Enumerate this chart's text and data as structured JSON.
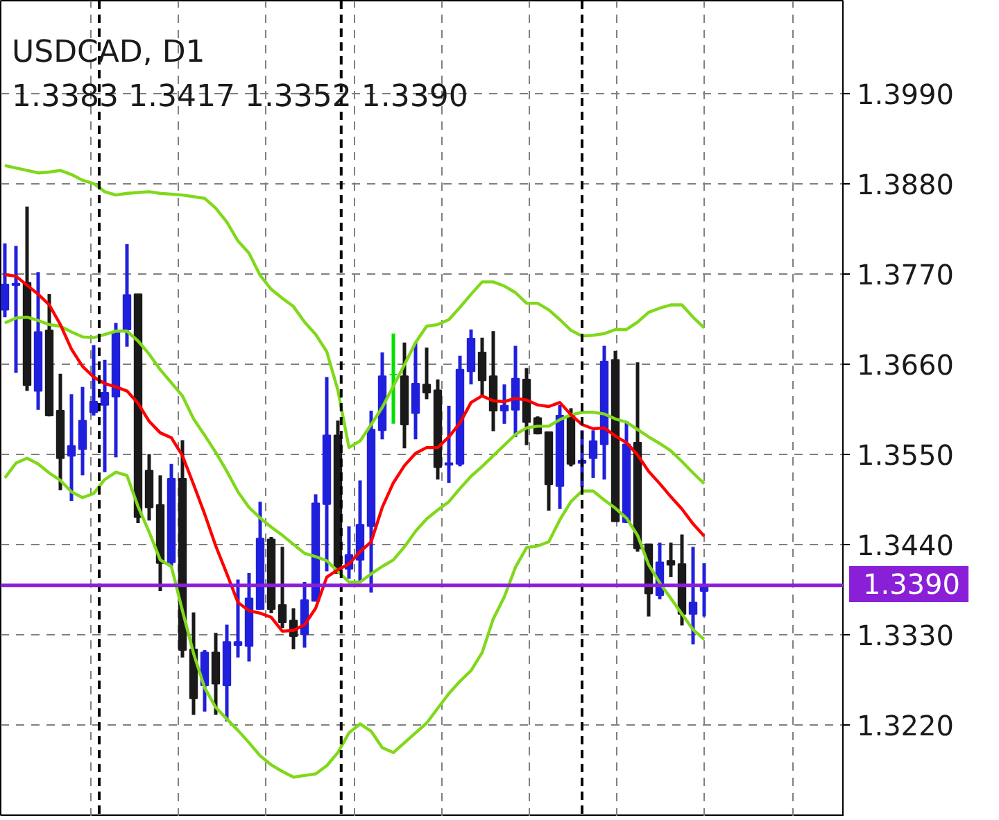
{
  "chart_data": {
    "type": "candlestick",
    "title": "USDCAD, D1",
    "subtitle": "1.3383 1.3417 1.3352 1.3390",
    "categories": [
      null,
      null,
      null,
      null,
      null,
      null,
      null,
      null,
      null,
      null,
      null,
      null,
      null,
      null,
      null,
      null,
      null,
      null,
      null,
      null,
      null,
      null,
      null,
      null,
      null,
      null,
      null,
      null,
      null,
      null,
      null,
      null,
      null,
      null,
      null,
      null,
      null,
      null,
      null,
      null,
      null,
      null,
      null,
      null,
      null,
      null,
      null,
      null,
      null,
      null,
      null,
      null,
      null,
      null,
      null,
      null,
      null,
      null,
      null,
      null,
      null,
      null,
      null,
      null
    ],
    "ohlc": [
      [
        1.3726,
        1.3807,
        1.3717,
        1.3757
      ],
      [
        1.3756,
        1.3804,
        1.3649,
        1.3758
      ],
      [
        1.3759,
        1.3852,
        1.3627,
        1.3634
      ],
      [
        1.3627,
        1.3772,
        1.3604,
        1.3699
      ],
      [
        1.3701,
        1.3745,
        1.3596,
        1.3597
      ],
      [
        1.3603,
        1.3648,
        1.3506,
        1.3545
      ],
      [
        1.3548,
        1.3623,
        1.3493,
        1.356
      ],
      [
        1.3556,
        1.3632,
        1.3524,
        1.3591
      ],
      [
        1.3601,
        1.3683,
        1.3597,
        1.3614
      ],
      [
        1.361,
        1.3665,
        1.3528,
        1.3625
      ],
      [
        1.362,
        1.371,
        1.3546,
        1.3699
      ],
      [
        1.3702,
        1.3806,
        1.3681,
        1.3744
      ],
      [
        1.3745,
        1.3745,
        1.3466,
        1.3473
      ],
      [
        1.353,
        1.355,
        1.3469,
        1.3485
      ],
      [
        1.3488,
        1.3524,
        1.3383,
        1.3417
      ],
      [
        1.3418,
        1.3538,
        1.3413,
        1.352
      ],
      [
        1.352,
        1.3567,
        1.3302,
        1.3311
      ],
      [
        1.3312,
        1.3357,
        1.3232,
        1.3252
      ],
      [
        1.3268,
        1.3311,
        1.3236,
        1.3308
      ],
      [
        1.3308,
        1.3332,
        1.3232,
        1.327
      ],
      [
        1.3268,
        1.3342,
        1.3224,
        1.3321
      ],
      [
        1.3317,
        1.3397,
        1.3302,
        1.3321
      ],
      [
        1.3316,
        1.3405,
        1.3297,
        1.3374
      ],
      [
        1.3361,
        1.3492,
        1.3361,
        1.3447
      ],
      [
        1.3446,
        1.3449,
        1.3356,
        1.3361
      ],
      [
        1.3366,
        1.3437,
        1.3338,
        1.3345
      ],
      [
        1.3347,
        1.3362,
        1.3312,
        1.3328
      ],
      [
        1.333,
        1.3394,
        1.3314,
        1.3372
      ],
      [
        1.3371,
        1.3501,
        1.3371,
        1.349
      ],
      [
        1.3489,
        1.3644,
        1.3407,
        1.3573
      ],
      [
        1.3573,
        1.3591,
        1.3405,
        1.3405
      ],
      [
        1.341,
        1.3462,
        1.3398,
        1.3427
      ],
      [
        1.3421,
        1.3518,
        1.3394,
        1.3464
      ],
      [
        1.3462,
        1.3603,
        1.3381,
        1.358
      ],
      [
        1.3579,
        1.3674,
        1.3568,
        1.3645
      ],
      [
        1.3647,
        1.3697,
        1.3587,
        1.3647
      ],
      [
        1.3645,
        1.3686,
        1.3557,
        1.3586
      ],
      [
        1.36,
        1.3686,
        1.3568,
        1.3636
      ],
      [
        1.3635,
        1.368,
        1.3617,
        1.3625
      ],
      [
        1.3628,
        1.3641,
        1.3519,
        1.3534
      ],
      [
        1.3537,
        1.3609,
        1.3515,
        1.3539
      ],
      [
        1.3538,
        1.367,
        1.3535,
        1.3653
      ],
      [
        1.3651,
        1.3702,
        1.3635,
        1.3691
      ],
      [
        1.3674,
        1.3692,
        1.3621,
        1.364
      ],
      [
        1.3645,
        1.37,
        1.3578,
        1.3603
      ],
      [
        1.3603,
        1.3635,
        1.3587,
        1.3609
      ],
      [
        1.3604,
        1.3682,
        1.3571,
        1.3642
      ],
      [
        1.3641,
        1.3655,
        1.3561,
        1.3589
      ],
      [
        1.3594,
        1.3596,
        1.3574,
        1.3575
      ],
      [
        1.3577,
        1.3577,
        1.3481,
        1.3513
      ],
      [
        1.3511,
        1.361,
        1.3483,
        1.3597
      ],
      [
        1.3597,
        1.3606,
        1.3535,
        1.3538
      ],
      [
        1.3539,
        1.3579,
        1.351,
        1.3542
      ],
      [
        1.3545,
        1.3579,
        1.3521,
        1.3566
      ],
      [
        1.3562,
        1.3682,
        1.3519,
        1.3663
      ],
      [
        1.3665,
        1.3676,
        1.3468,
        1.3468
      ],
      [
        1.3467,
        1.359,
        1.3466,
        1.3562
      ],
      [
        1.3564,
        1.3662,
        1.3431,
        1.3435
      ],
      [
        1.344,
        1.344,
        1.3352,
        1.338
      ],
      [
        1.3378,
        1.3442,
        1.3373,
        1.3418
      ],
      [
        1.342,
        1.3442,
        1.34,
        1.3415
      ],
      [
        1.3416,
        1.3452,
        1.3341,
        1.3355
      ],
      [
        1.3355,
        1.3437,
        1.3318,
        1.3369
      ],
      [
        1.3383,
        1.3417,
        1.3352,
        1.339
      ]
    ],
    "colors": [
      "#2020dc",
      "#2020dc",
      "#1a1a1a",
      "#2020dc",
      "#1a1a1a",
      "#1a1a1a",
      "#2020dc",
      "#2020dc",
      "#2020dc",
      "#2020dc",
      "#2020dc",
      "#2020dc",
      "#1a1a1a",
      "#1a1a1a",
      "#1a1a1a",
      "#2020dc",
      "#1a1a1a",
      "#1a1a1a",
      "#2020dc",
      "#1a1a1a",
      "#2020dc",
      "#2020dc",
      "#2020dc",
      "#2020dc",
      "#1a1a1a",
      "#1a1a1a",
      "#1a1a1a",
      "#2020dc",
      "#2020dc",
      "#2020dc",
      "#1a1a1a",
      "#2020dc",
      "#2020dc",
      "#2020dc",
      "#2020dc",
      "#00e000",
      "#1a1a1a",
      "#2020dc",
      "#1a1a1a",
      "#1a1a1a",
      "#2020dc",
      "#2020dc",
      "#2020dc",
      "#1a1a1a",
      "#1a1a1a",
      "#2020dc",
      "#2020dc",
      "#1a1a1a",
      "#1a1a1a",
      "#1a1a1a",
      "#2020dc",
      "#1a1a1a",
      "#2020dc",
      "#2020dc",
      "#2020dc",
      "#1a1a1a",
      "#2020dc",
      "#1a1a1a",
      "#1a1a1a",
      "#2020dc",
      "#1a1a1a",
      "#1a1a1a",
      "#2020dc",
      "#2020dc"
    ],
    "series": [
      {
        "type": "line",
        "color": "#80d81a",
        "values": [
          1.3902,
          1.3899,
          1.3896,
          1.3893,
          1.3894,
          1.3896,
          1.3891,
          1.3884,
          1.388,
          1.387,
          1.3866,
          1.3868,
          1.3869,
          1.387,
          1.3868,
          1.3867,
          1.3866,
          1.3864,
          1.3862,
          1.385,
          1.3833,
          1.381,
          1.3795,
          1.3768,
          1.3751,
          1.374,
          1.373,
          1.3711,
          1.3696,
          1.3675,
          1.3628,
          1.3558,
          1.3566,
          1.3586,
          1.3607,
          1.3633,
          1.3659,
          1.3686,
          1.3706,
          1.3708,
          1.3714,
          1.3729,
          1.3745,
          1.376,
          1.376,
          1.3755,
          1.3747,
          1.3734,
          1.3734,
          1.3726,
          1.3714,
          1.3701,
          1.3694,
          1.3695,
          1.3697,
          1.3702,
          1.3702,
          1.3711,
          1.3723,
          1.3728,
          1.3732,
          1.3732,
          1.3717,
          1.3704
        ]
      },
      {
        "type": "line",
        "color": "#80d81a",
        "values": [
          1.371,
          1.3716,
          1.3717,
          1.3713,
          1.3708,
          1.3706,
          1.3699,
          1.3693,
          1.3692,
          1.3696,
          1.37,
          1.37,
          1.3688,
          1.3672,
          1.3653,
          1.3637,
          1.3621,
          1.3593,
          1.3573,
          1.3552,
          1.3529,
          1.3504,
          1.3485,
          1.3472,
          1.3461,
          1.3451,
          1.344,
          1.3429,
          1.3425,
          1.342,
          1.3407,
          1.3394,
          1.3394,
          1.3404,
          1.3413,
          1.3421,
          1.3437,
          1.3456,
          1.3471,
          1.3482,
          1.3492,
          1.3508,
          1.3523,
          1.3535,
          1.3548,
          1.3561,
          1.3574,
          1.3582,
          1.3584,
          1.3584,
          1.3592,
          1.3598,
          1.3601,
          1.3601,
          1.3599,
          1.3593,
          1.3589,
          1.358,
          1.3571,
          1.3563,
          1.3554,
          1.3541,
          1.3527,
          1.3514
        ]
      },
      {
        "type": "line",
        "color": "#80d81a",
        "values": [
          1.3521,
          1.3539,
          1.3545,
          1.3538,
          1.3527,
          1.3518,
          1.3504,
          1.3497,
          1.3502,
          1.3519,
          1.3528,
          1.3524,
          1.3486,
          1.3455,
          1.3421,
          1.3413,
          1.3359,
          1.3307,
          1.3265,
          1.3241,
          1.3227,
          1.3213,
          1.3198,
          1.3182,
          1.3171,
          1.3163,
          1.3156,
          1.3158,
          1.316,
          1.317,
          1.3186,
          1.321,
          1.3221,
          1.3212,
          1.3192,
          1.3186,
          1.3198,
          1.321,
          1.3222,
          1.324,
          1.3258,
          1.3273,
          1.3286,
          1.3308,
          1.3349,
          1.3376,
          1.3412,
          1.3436,
          1.3438,
          1.3443,
          1.347,
          1.3492,
          1.3505,
          1.3505,
          1.3494,
          1.3484,
          1.3472,
          1.3451,
          1.3415,
          1.3393,
          1.3374,
          1.3355,
          1.3336,
          1.3324
        ]
      },
      {
        "type": "line",
        "color": "#ff0000",
        "values": [
          1.3769,
          1.3767,
          1.3756,
          1.3745,
          1.3732,
          1.3708,
          1.3678,
          1.3657,
          1.3644,
          1.3636,
          1.3632,
          1.3627,
          1.3612,
          1.359,
          1.3576,
          1.357,
          1.3548,
          1.3513,
          1.3477,
          1.3438,
          1.3404,
          1.3369,
          1.3359,
          1.3356,
          1.3351,
          1.3334,
          1.3335,
          1.3342,
          1.3362,
          1.34,
          1.3409,
          1.3416,
          1.3431,
          1.3443,
          1.3485,
          1.3515,
          1.3536,
          1.3551,
          1.3558,
          1.3558,
          1.3571,
          1.3588,
          1.3613,
          1.3621,
          1.3615,
          1.3614,
          1.3618,
          1.3616,
          1.361,
          1.3608,
          1.3613,
          1.3598,
          1.3586,
          1.3581,
          1.3582,
          1.3572,
          1.3564,
          1.3549,
          1.3529,
          1.3514,
          1.3498,
          1.3483,
          1.3465,
          1.345
        ]
      }
    ],
    "ylim": [
      1.3108,
      1.4103
    ],
    "yticks": [
      {
        "value": 1.322,
        "label": "1.3220"
      },
      {
        "value": 1.333,
        "label": "1.3330"
      },
      {
        "value": 1.344,
        "label": "1.3440"
      },
      {
        "value": 1.355,
        "label": "1.3550"
      },
      {
        "value": 1.366,
        "label": "1.3660"
      },
      {
        "value": 1.377,
        "label": "1.3770"
      },
      {
        "value": 1.388,
        "label": "1.3880"
      },
      {
        "value": 1.399,
        "label": "1.3990"
      }
    ],
    "grid": true,
    "ref_lines": [
      {
        "axis": "y",
        "value": 1.339,
        "label": "1.3390",
        "color": "#8a1fd8",
        "line_style": "solid"
      }
    ]
  }
}
